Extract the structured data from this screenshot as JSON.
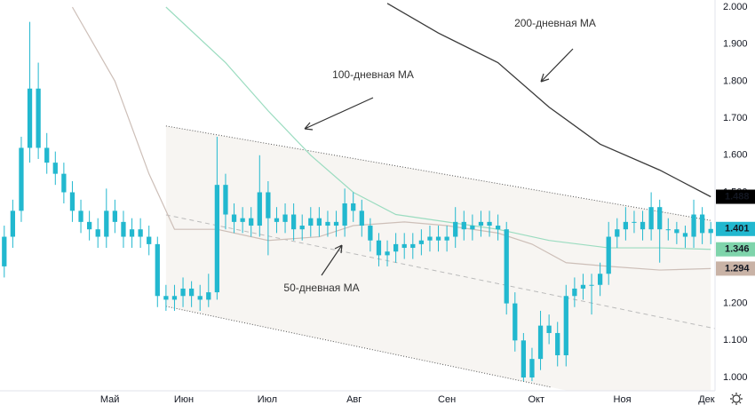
{
  "chart_data": {
    "type": "candlestick",
    "xlim": [
      -0.5,
      83.5
    ],
    "xticks": [
      {
        "value": 12.4,
        "label": "Май"
      },
      {
        "value": 21.1,
        "label": "Июн"
      },
      {
        "value": 30.9,
        "label": "Июл"
      },
      {
        "value": 41.1,
        "label": "Авг"
      },
      {
        "value": 52,
        "label": "Сен"
      },
      {
        "value": 62.5,
        "label": "Окт"
      },
      {
        "value": 72.6,
        "label": "Ноя"
      },
      {
        "value": 82.5,
        "label": "Дек"
      }
    ],
    "ylim": [
      0.962,
      2.019
    ],
    "yticks": [
      {
        "value": 1,
        "label": "1.000"
      },
      {
        "value": 1.1,
        "label": "1.100"
      },
      {
        "value": 1.2,
        "label": "1.200"
      },
      {
        "value": 1.3,
        "label": "1.300"
      },
      {
        "value": 1.4,
        "label": "1.400"
      },
      {
        "value": 1.5,
        "label": "1.500"
      },
      {
        "value": 1.6,
        "label": "1.600"
      },
      {
        "value": 1.7,
        "label": "1.700"
      },
      {
        "value": 1.8,
        "label": "1.800"
      },
      {
        "value": 1.9,
        "label": "1.900"
      },
      {
        "value": 2,
        "label": "2.000"
      }
    ],
    "grid": false,
    "candles": {
      "color": "#22b8cf",
      "last_label": "1.401",
      "open": [
        1.3,
        1.38,
        1.45,
        1.62,
        1.78,
        1.62,
        1.58,
        1.55,
        1.5,
        1.45,
        1.42,
        1.4,
        1.38,
        1.45,
        1.42,
        1.38,
        1.4,
        1.38,
        1.36,
        1.22,
        1.21,
        1.22,
        1.24,
        1.22,
        1.21,
        1.23,
        1.52,
        1.44,
        1.42,
        1.43,
        1.41,
        1.5,
        1.43,
        1.42,
        1.44,
        1.4,
        1.41,
        1.43,
        1.41,
        1.42,
        1.41,
        1.47,
        1.45,
        1.41,
        1.37,
        1.33,
        1.34,
        1.36,
        1.35,
        1.36,
        1.37,
        1.38,
        1.37,
        1.38,
        1.42,
        1.4,
        1.41,
        1.42,
        1.41,
        1.4,
        1.2,
        1.1,
        1.0,
        1.05,
        1.14,
        1.12,
        1.06,
        1.22,
        1.24,
        1.25,
        1.25,
        1.28,
        1.38,
        1.4,
        1.42,
        1.42,
        1.4,
        1.46,
        1.4,
        1.4,
        1.39,
        1.38,
        1.44,
        1.39
      ],
      "high": [
        1.41,
        1.48,
        1.65,
        1.96,
        1.85,
        1.66,
        1.61,
        1.58,
        1.53,
        1.48,
        1.45,
        1.43,
        1.51,
        1.48,
        1.45,
        1.43,
        1.43,
        1.41,
        1.38,
        1.25,
        1.25,
        1.27,
        1.26,
        1.25,
        1.28,
        1.65,
        1.55,
        1.47,
        1.46,
        1.46,
        1.6,
        1.53,
        1.46,
        1.47,
        1.47,
        1.44,
        1.46,
        1.46,
        1.45,
        1.45,
        1.51,
        1.5,
        1.48,
        1.43,
        1.39,
        1.37,
        1.39,
        1.39,
        1.39,
        1.4,
        1.41,
        1.41,
        1.41,
        1.46,
        1.45,
        1.44,
        1.45,
        1.45,
        1.44,
        1.42,
        1.23,
        1.12,
        1.08,
        1.18,
        1.17,
        1.15,
        1.25,
        1.27,
        1.28,
        1.28,
        1.31,
        1.42,
        1.43,
        1.46,
        1.45,
        1.45,
        1.5,
        1.48,
        1.43,
        1.42,
        1.41,
        1.48,
        1.46,
        1.42
      ],
      "low": [
        1.27,
        1.35,
        1.42,
        1.58,
        1.59,
        1.55,
        1.52,
        1.47,
        1.42,
        1.39,
        1.37,
        1.35,
        1.35,
        1.39,
        1.35,
        1.35,
        1.35,
        1.33,
        1.19,
        1.18,
        1.18,
        1.19,
        1.19,
        1.18,
        1.19,
        1.21,
        1.4,
        1.39,
        1.39,
        1.38,
        1.38,
        1.33,
        1.39,
        1.39,
        1.37,
        1.37,
        1.38,
        1.38,
        1.38,
        1.38,
        1.38,
        1.42,
        1.38,
        1.34,
        1.3,
        1.3,
        1.31,
        1.32,
        1.32,
        1.33,
        1.34,
        1.34,
        1.34,
        1.35,
        1.37,
        1.37,
        1.38,
        1.38,
        1.37,
        1.17,
        1.07,
        0.99,
        0.99,
        1.02,
        1.09,
        1.03,
        1.03,
        1.19,
        1.21,
        1.17,
        1.22,
        1.25,
        1.35,
        1.37,
        1.39,
        1.37,
        1.37,
        1.31,
        1.37,
        1.36,
        1.35,
        1.35,
        1.36,
        1.36
      ],
      "close": [
        1.38,
        1.45,
        1.62,
        1.78,
        1.62,
        1.58,
        1.55,
        1.5,
        1.45,
        1.42,
        1.4,
        1.38,
        1.45,
        1.42,
        1.38,
        1.4,
        1.38,
        1.36,
        1.22,
        1.21,
        1.22,
        1.24,
        1.22,
        1.21,
        1.23,
        1.52,
        1.44,
        1.42,
        1.43,
        1.41,
        1.5,
        1.43,
        1.42,
        1.44,
        1.4,
        1.41,
        1.43,
        1.41,
        1.42,
        1.41,
        1.47,
        1.45,
        1.41,
        1.37,
        1.33,
        1.34,
        1.36,
        1.35,
        1.36,
        1.37,
        1.38,
        1.37,
        1.38,
        1.42,
        1.4,
        1.41,
        1.42,
        1.41,
        1.4,
        1.2,
        1.1,
        1.0,
        1.05,
        1.14,
        1.12,
        1.06,
        1.22,
        1.24,
        1.25,
        1.25,
        1.28,
        1.38,
        1.4,
        1.42,
        1.42,
        1.4,
        1.46,
        1.4,
        1.4,
        1.39,
        1.38,
        1.44,
        1.39,
        1.401
      ]
    },
    "series": [
      {
        "name": "200-дневная MA",
        "color": "#3a3a3a",
        "label_color": "#000000",
        "last_label": "1.488",
        "x": [
          45,
          51,
          58,
          64,
          70,
          77,
          83
        ],
        "values": [
          2.01,
          1.93,
          1.85,
          1.73,
          1.63,
          1.56,
          1.488
        ]
      },
      {
        "name": "100-дневная MA",
        "color": "#9bdcc0",
        "label_color": "#7fd4ab",
        "last_label": "1.346",
        "x": [
          19,
          26,
          31,
          36,
          41,
          46,
          52,
          58,
          64,
          71,
          77,
          83
        ],
        "values": [
          2.0,
          1.85,
          1.72,
          1.6,
          1.5,
          1.44,
          1.42,
          1.4,
          1.37,
          1.35,
          1.35,
          1.346
        ]
      },
      {
        "name": "50-дневная MA",
        "color": "#cdbfb8",
        "label_color": "#c9b3a6",
        "last_label": "1.294",
        "x": [
          8,
          13,
          17,
          20,
          25,
          31,
          37,
          41,
          47,
          52,
          58,
          62,
          66,
          71,
          77,
          83
        ],
        "values": [
          2.0,
          1.8,
          1.55,
          1.4,
          1.4,
          1.37,
          1.38,
          1.41,
          1.42,
          1.41,
          1.39,
          1.36,
          1.31,
          1.3,
          1.29,
          1.294
        ]
      }
    ],
    "channel": {
      "upper": {
        "x": [
          19,
          83
        ],
        "y": [
          1.679,
          1.424
        ]
      },
      "lower": {
        "x": [
          19,
          64.2
        ],
        "y": [
          1.192,
          0.974
        ]
      },
      "middle": {
        "x": [
          19,
          83.5
        ],
        "y": [
          1.439,
          1.132
        ]
      }
    }
  }
}
